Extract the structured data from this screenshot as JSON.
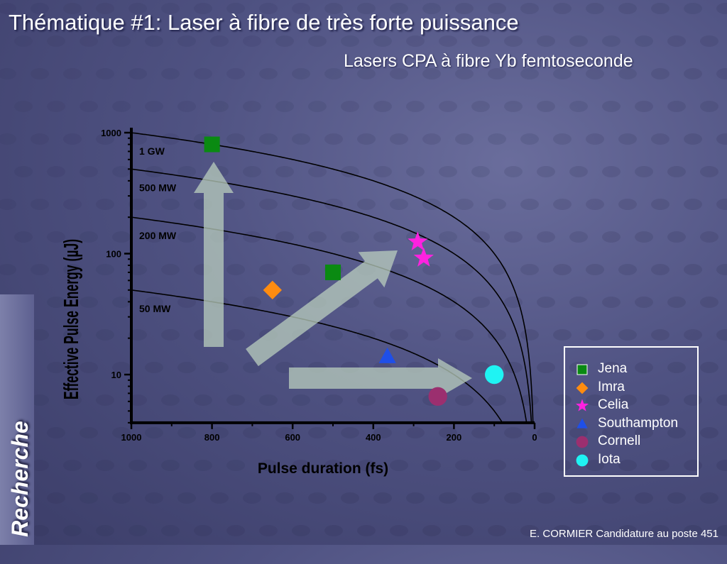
{
  "slide": {
    "title": "Thématique #1: Laser à fibre de très forte puissance",
    "subtitle": "Lasers CPA à fibre Yb femtoseconde",
    "sidebar_label": "Recherche",
    "footer": "E. CORMIER Candidature au poste 451"
  },
  "colors": {
    "background": "#4f5282",
    "text": "#ffffff",
    "arrow": "#b9cdbd"
  },
  "chart_data": {
    "type": "scatter",
    "xlabel": "Pulse duration (fs)",
    "ylabel": "Effective Pulse Energy (µJ)",
    "x_scale": "linear",
    "x_reversed": true,
    "xlim": [
      1000,
      0
    ],
    "y_scale": "log",
    "ylim": [
      4,
      1100
    ],
    "x_ticks": [
      1000,
      800,
      600,
      400,
      200,
      0
    ],
    "x_tick_labels": [
      "1000",
      "800",
      "600",
      "400",
      "200",
      "0"
    ],
    "y_ticks": [
      1000,
      100,
      10
    ],
    "y_tick_labels": [
      "1000",
      "100",
      "10"
    ],
    "grid": false,
    "legend_placement": "right",
    "iso_power_curves": [
      {
        "label": "1 GW",
        "power_W": 1000000000
      },
      {
        "label": "500 MW",
        "power_W": 500000000
      },
      {
        "label": "200 MW",
        "power_W": 200000000
      },
      {
        "label": "50 MW",
        "power_W": 50000000
      }
    ],
    "series": [
      {
        "name": "Jena",
        "marker": "square",
        "color": "#0a8a12",
        "points": [
          [
            800,
            800
          ],
          [
            500,
            70
          ]
        ]
      },
      {
        "name": "Imra",
        "marker": "diamond",
        "color": "#ff8c10",
        "points": [
          [
            650,
            50
          ]
        ]
      },
      {
        "name": "Celia",
        "marker": "star",
        "color": "#ff22e0",
        "points": [
          [
            290,
            125
          ],
          [
            275,
            92
          ]
        ]
      },
      {
        "name": "Southampton",
        "marker": "triangle",
        "color": "#1f4fe8",
        "points": [
          [
            365,
            14
          ]
        ]
      },
      {
        "name": "Cornell",
        "marker": "circle",
        "color": "#9b2f6f",
        "points": [
          [
            240,
            6.6
          ]
        ]
      },
      {
        "name": "Iota",
        "marker": "circle",
        "color": "#1ff3f3",
        "points": [
          [
            100,
            10
          ]
        ]
      }
    ]
  }
}
